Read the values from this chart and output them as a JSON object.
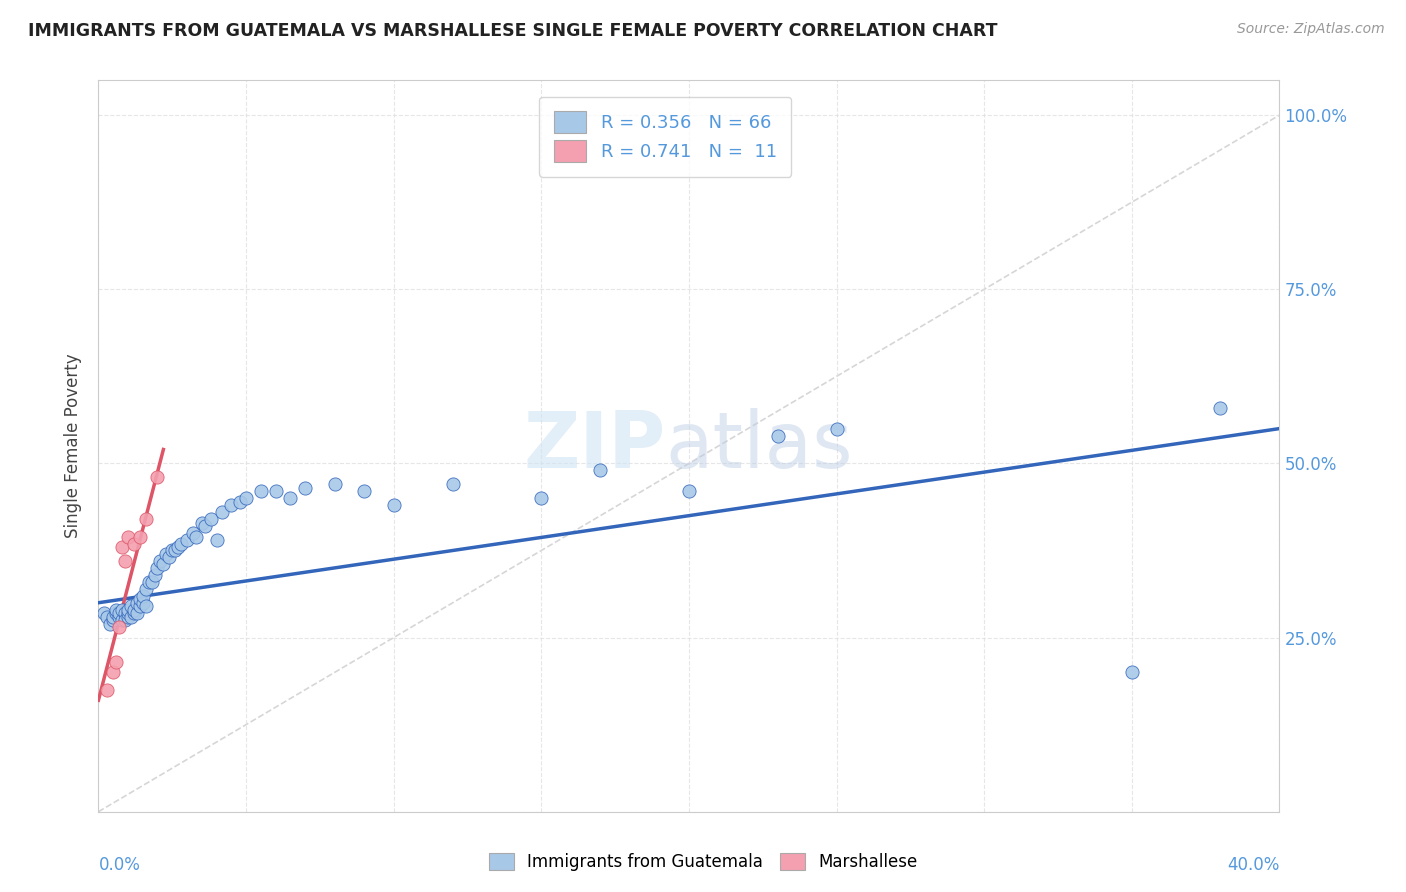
{
  "title": "IMMIGRANTS FROM GUATEMALA VS MARSHALLESE SINGLE FEMALE POVERTY CORRELATION CHART",
  "source": "Source: ZipAtlas.com",
  "ylabel": "Single Female Poverty",
  "watermark": "ZIPatlas",
  "background_color": "#ffffff",
  "grid_color": "#e0e0e0",
  "blue_color": "#a8c8e8",
  "pink_color": "#f4a0b0",
  "blue_line_color": "#3366bb",
  "pink_line_color": "#dd5566",
  "diag_line_color": "#cccccc",
  "right_tick_color": "#5599dd",
  "xlim": [
    0.0,
    0.4
  ],
  "ylim": [
    0.0,
    1.05
  ],
  "blue_scatter_x": [
    0.002,
    0.003,
    0.004,
    0.005,
    0.005,
    0.006,
    0.006,
    0.007,
    0.007,
    0.008,
    0.008,
    0.009,
    0.009,
    0.01,
    0.01,
    0.01,
    0.011,
    0.011,
    0.012,
    0.012,
    0.013,
    0.013,
    0.014,
    0.014,
    0.015,
    0.015,
    0.016,
    0.016,
    0.017,
    0.018,
    0.019,
    0.02,
    0.021,
    0.022,
    0.023,
    0.024,
    0.025,
    0.026,
    0.027,
    0.028,
    0.03,
    0.032,
    0.033,
    0.035,
    0.036,
    0.038,
    0.04,
    0.042,
    0.045,
    0.048,
    0.05,
    0.055,
    0.06,
    0.065,
    0.07,
    0.08,
    0.09,
    0.1,
    0.12,
    0.15,
    0.17,
    0.2,
    0.23,
    0.25,
    0.35,
    0.38
  ],
  "blue_scatter_y": [
    0.285,
    0.28,
    0.27,
    0.275,
    0.28,
    0.285,
    0.29,
    0.28,
    0.285,
    0.275,
    0.29,
    0.285,
    0.275,
    0.28,
    0.285,
    0.29,
    0.295,
    0.28,
    0.285,
    0.29,
    0.285,
    0.3,
    0.295,
    0.305,
    0.3,
    0.31,
    0.295,
    0.32,
    0.33,
    0.33,
    0.34,
    0.35,
    0.36,
    0.355,
    0.37,
    0.365,
    0.375,
    0.375,
    0.38,
    0.385,
    0.39,
    0.4,
    0.395,
    0.415,
    0.41,
    0.42,
    0.39,
    0.43,
    0.44,
    0.445,
    0.45,
    0.46,
    0.46,
    0.45,
    0.465,
    0.47,
    0.46,
    0.44,
    0.47,
    0.45,
    0.49,
    0.46,
    0.54,
    0.55,
    0.2,
    0.58
  ],
  "pink_scatter_x": [
    0.003,
    0.005,
    0.006,
    0.007,
    0.008,
    0.009,
    0.01,
    0.012,
    0.014,
    0.016,
    0.02
  ],
  "pink_scatter_y": [
    0.175,
    0.2,
    0.215,
    0.265,
    0.38,
    0.36,
    0.395,
    0.385,
    0.395,
    0.42,
    0.48
  ],
  "blue_line_x0": 0.0,
  "blue_line_y0": 0.3,
  "blue_line_x1": 0.4,
  "blue_line_y1": 0.55,
  "pink_line_x0": 0.0,
  "pink_line_y0": 0.16,
  "pink_line_x1": 0.022,
  "pink_line_y1": 0.52
}
